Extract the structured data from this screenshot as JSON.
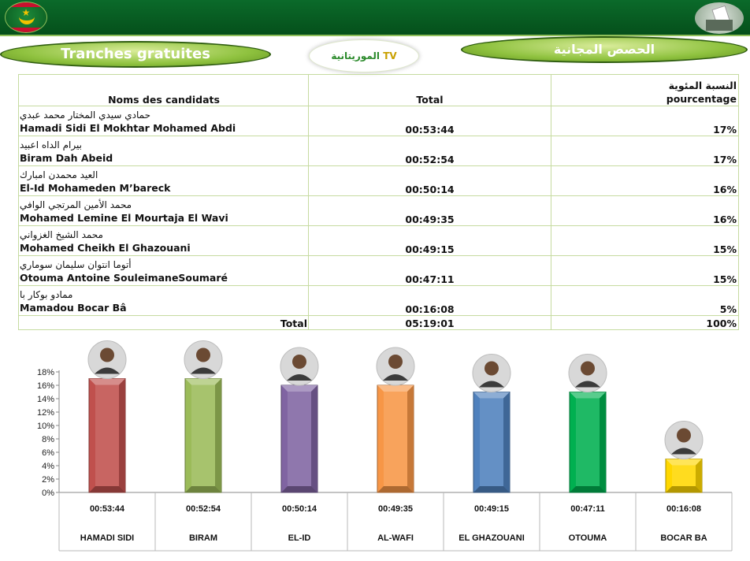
{
  "header": {
    "title_fr": "Tranches gratuites",
    "title_ar": "الحصص المجانية",
    "logo_text_main": "الموريتانية",
    "logo_text_accent": "TV"
  },
  "table": {
    "headers": {
      "name": "Noms des candidats",
      "total": "Total",
      "pct_ar": "النسبة المئوية",
      "pct_fr": "pourcentage"
    },
    "rows": [
      {
        "ar": "حمادي سيدي المختار محمد عبدي",
        "fr": "Hamadi Sidi El Mokhtar Mohamed Abdi",
        "total": "00:53:44",
        "pct": "17%"
      },
      {
        "ar": "بيرام الداه اعبيد",
        "fr": "Biram Dah Abeid",
        "total": "00:52:54",
        "pct": "17%"
      },
      {
        "ar": "العيد محمدن امبارك",
        "fr": "El-Id Mohameden M’bareck",
        "total": "00:50:14",
        "pct": "16%"
      },
      {
        "ar": "محمد الأمين المرتجي الوافي",
        "fr": "Mohamed Lemine El Mourtaja El Wavi",
        "total": "00:49:35",
        "pct": "16%"
      },
      {
        "ar": "محمد الشيخ الغزواني",
        "fr": "Mohamed Cheikh El Ghazouani",
        "total": "00:49:15",
        "pct": "15%"
      },
      {
        "ar": "أتوما انتوان سليمان سوماري",
        "fr": "Otouma Antoine SouleimaneSoumaré",
        "total": "00:47:11",
        "pct": "15%"
      },
      {
        "ar": "ممادو بوكار با",
        "fr": "Mamadou Bocar Bâ",
        "total": "00:16:08",
        "pct": "5%"
      }
    ],
    "footer": {
      "label": "Total",
      "total": "05:19:01",
      "pct": "100%"
    }
  },
  "chart_data": {
    "type": "bar",
    "categories": [
      "HAMADI SIDI",
      "BIRAM",
      "EL-ID",
      "AL-WAFI",
      "EL GHAZOUANI",
      "OTOUMA",
      "BOCAR BA"
    ],
    "times": [
      "00:53:44",
      "00:52:54",
      "00:50:14",
      "00:49:35",
      "00:49:15",
      "00:47:11",
      "00:16:08"
    ],
    "values": [
      17,
      17,
      16,
      16,
      15,
      15,
      5
    ],
    "colors": [
      "#c0504d",
      "#9bbb59",
      "#8064a2",
      "#f79646",
      "#4f81bd",
      "#00b050",
      "#ffd700"
    ],
    "ylim": [
      0,
      18
    ],
    "yticks": [
      "0%",
      "2%",
      "4%",
      "6%",
      "8%",
      "10%",
      "12%",
      "14%",
      "16%",
      "18%"
    ],
    "grid": false
  }
}
